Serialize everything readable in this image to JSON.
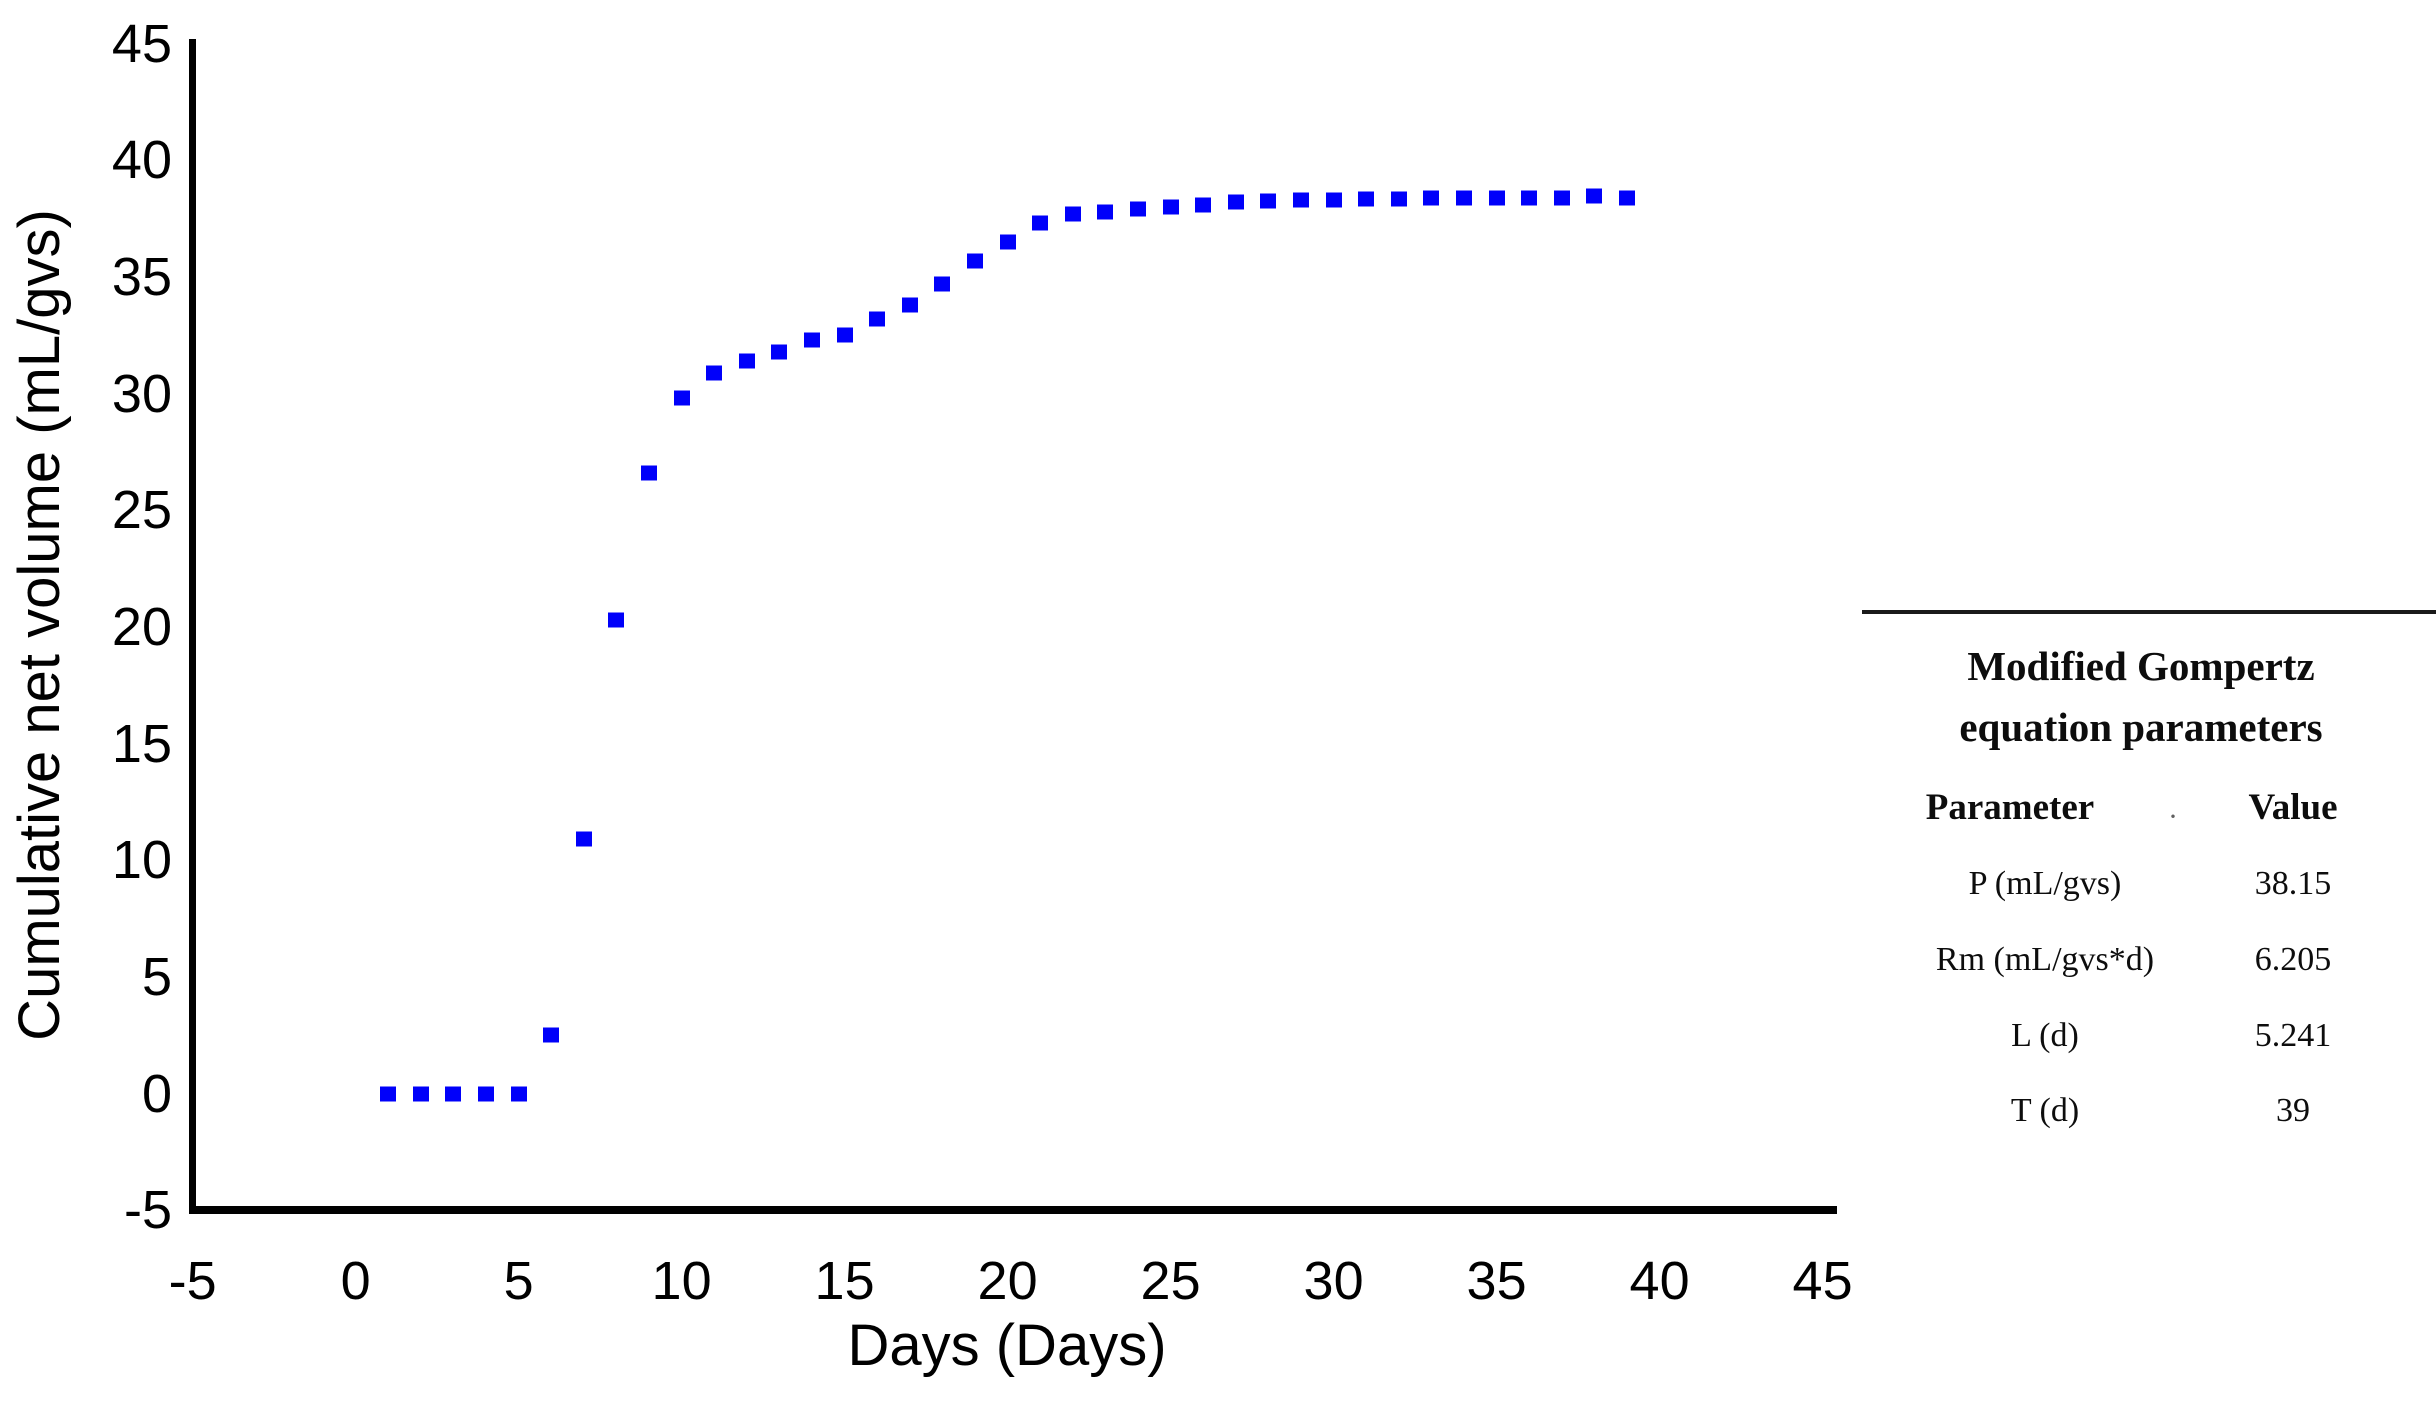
{
  "colors": {
    "marker_blue": "#0000FA",
    "axis_black": "#000000",
    "background": "#FFFFFF"
  },
  "chart_data": {
    "type": "scatter",
    "title": "",
    "xlabel": "Days (Days)",
    "ylabel": "Cumulative net volume (mL/gvs)",
    "xlim": [
      -5,
      45
    ],
    "ylim": [
      -5,
      45
    ],
    "xticks": [
      -5,
      0,
      5,
      10,
      15,
      20,
      25,
      30,
      35,
      40,
      45
    ],
    "yticks": [
      45,
      40,
      35,
      30,
      25,
      20,
      15,
      10,
      5,
      0,
      -5
    ],
    "grid": false,
    "legend": false,
    "marker_shape": "square",
    "series": [
      {
        "name": "Cumulative net volume",
        "color": "#0000FA",
        "x": [
          1,
          2,
          3,
          4,
          5,
          6,
          7,
          8,
          9,
          10,
          11,
          12,
          13,
          14,
          15,
          16,
          17,
          18,
          19,
          20,
          21,
          22,
          23,
          24,
          25,
          26,
          27,
          28,
          29,
          30,
          31,
          32,
          33,
          34,
          35,
          36,
          37,
          38,
          39
        ],
        "y": [
          0,
          0,
          0,
          0,
          0,
          2.5,
          10.9,
          20.3,
          26.6,
          29.8,
          30.9,
          31.4,
          31.8,
          32.3,
          32.5,
          33.2,
          33.8,
          34.7,
          35.7,
          36.5,
          37.3,
          37.7,
          37.8,
          37.9,
          38.0,
          38.1,
          38.2,
          38.25,
          38.3,
          38.3,
          38.35,
          38.35,
          38.4,
          38.4,
          38.4,
          38.4,
          38.4,
          38.45,
          38.4
        ]
      }
    ]
  },
  "params_table": {
    "title_line1": "Modified Gompertz",
    "title_line2": "equation parameters",
    "header_parameter": "Parameter",
    "header_value": "Value",
    "header_dot": "·",
    "rows": [
      {
        "param": "P (mL/gvs)",
        "value": "38.15"
      },
      {
        "param": "Rm (mL/gvs*d)",
        "value": "6.205"
      },
      {
        "param": "L (d)",
        "value": "5.241"
      },
      {
        "param": "T (d)",
        "value": "39"
      }
    ]
  }
}
